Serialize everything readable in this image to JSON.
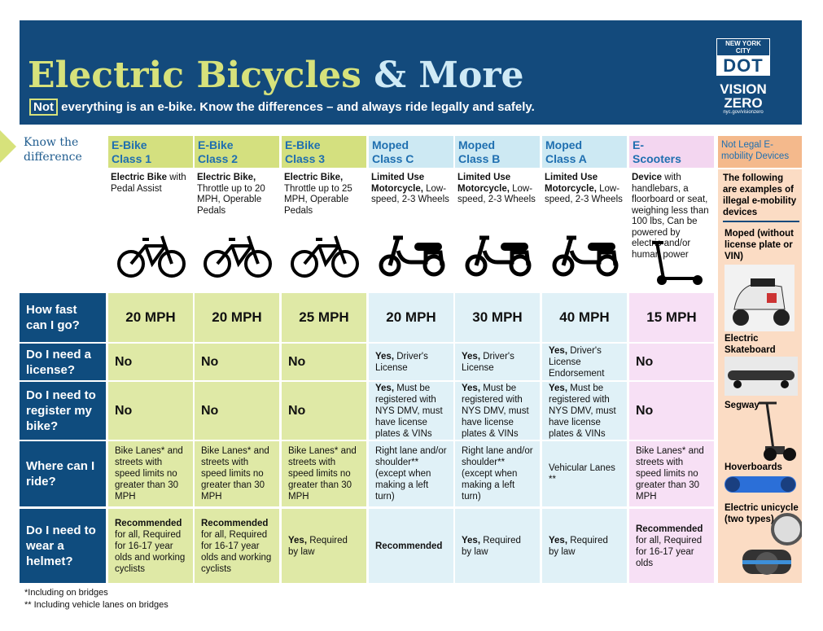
{
  "header": {
    "title_part1": "Electric Bicycles",
    "title_part2": "& More",
    "subtitle_not": "Not",
    "subtitle": "everything is an e-bike. Know the differences – and always ride legally and safely.",
    "logo_top": "NEW YORK CITY",
    "logo_dot": "DOT",
    "vision": "VISION",
    "zero": "ZERO",
    "url": "nyc.gov/visionzero"
  },
  "intro": "Know the difference",
  "columns": [
    {
      "title": "E-Bike Class 1",
      "desc": {
        "bold": "Electric Bike",
        "text": "with Pedal Assist"
      }
    },
    {
      "title": "E-Bike Class 2",
      "desc": {
        "bold": "Electric Bike,",
        "text": "Throttle up to 20 MPH, Operable Pedals"
      }
    },
    {
      "title": "E-Bike Class 3",
      "desc": {
        "bold": "Electric Bike,",
        "text": "Throttle up to 25 MPH, Operable Pedals"
      }
    },
    {
      "title": "Moped Class C",
      "desc": {
        "bold": "Limited Use Motorcycle,",
        "text": "Low-speed, 2-3 Wheels"
      }
    },
    {
      "title": "Moped Class B",
      "desc": {
        "bold": "Limited Use Motorcycle,",
        "text": "Low-speed, 2-3 Wheels"
      }
    },
    {
      "title": "Moped Class A",
      "desc": {
        "bold": "Limited Use Motorcycle,",
        "text": "Low-speed, 2-3 Wheels"
      }
    },
    {
      "title": "E-Scooters",
      "desc": {
        "bold": "Device",
        "text": "with handlebars, a floorboard or seat, weighing less than 100 lbs, Can be powered by electric and/or human power"
      }
    }
  ],
  "rows": [
    {
      "label": "How fast can I go?",
      "cells": [
        {
          "bold": "20 MPH"
        },
        {
          "bold": "20 MPH"
        },
        {
          "bold": "25 MPH"
        },
        {
          "bold": "20 MPH"
        },
        {
          "bold": "30 MPH"
        },
        {
          "bold": "40 MPH"
        },
        {
          "bold": "15 MPH"
        }
      ]
    },
    {
      "label": "Do I need a license?",
      "cells": [
        {
          "bold": "No"
        },
        {
          "bold": "No"
        },
        {
          "bold": "No"
        },
        {
          "bold": "Yes,",
          "text": "Driver's License"
        },
        {
          "bold": "Yes,",
          "text": "Driver's License"
        },
        {
          "bold": "Yes,",
          "text": "Driver's License Endorsement"
        },
        {
          "bold": "No"
        }
      ]
    },
    {
      "label": "Do I need to register my bike?",
      "cells": [
        {
          "bold": "No"
        },
        {
          "bold": "No"
        },
        {
          "bold": "No"
        },
        {
          "bold": "Yes,",
          "text": "Must be registered with NYS DMV, must have license plates & VINs"
        },
        {
          "bold": "Yes,",
          "text": "Must be registered with NYS DMV, must have license plates & VINs"
        },
        {
          "bold": "Yes,",
          "text": "Must be registered with NYS DMV, must have license plates & VINs"
        },
        {
          "bold": "No"
        }
      ]
    },
    {
      "label": "Where can I ride?",
      "cells": [
        {
          "text": "Bike Lanes* and streets with speed limits no greater than 30 MPH"
        },
        {
          "text": "Bike Lanes* and streets with speed limits no greater than 30 MPH"
        },
        {
          "text": "Bike Lanes* and streets with speed limits no greater than 30 MPH"
        },
        {
          "text": "Right lane and/or shoulder** (except when making a left turn)"
        },
        {
          "text": "Right lane and/or shoulder** (except when making a left turn)"
        },
        {
          "text": "Vehicular Lanes **"
        },
        {
          "text": "Bike Lanes* and streets with speed limits no greater than 30 MPH"
        }
      ]
    },
    {
      "label": "Do I need to wear a helmet?",
      "cells": [
        {
          "bold": "Recommended",
          "text": "for all, Required for 16-17 year olds and working cyclists"
        },
        {
          "bold": "Recommended",
          "text": "for all, Required for 16-17 year olds and working cyclists"
        },
        {
          "bold": "Yes,",
          "text": "Required by law"
        },
        {
          "bold": "Recommended"
        },
        {
          "bold": "Yes,",
          "text": "Required by law"
        },
        {
          "bold": "Yes,",
          "text": "Required by law"
        },
        {
          "bold": "Recommended",
          "text": "for all, Required for 16-17 year olds"
        }
      ]
    }
  ],
  "illegal": {
    "title": "Not Legal E-mobility Devices",
    "intro": "The following are examples of illegal e-mobility devices",
    "items": [
      "Moped (without license plate or VIN)",
      "Electric Skateboard",
      "Segway",
      "Hoverboards",
      "Electric unicycle (two types)"
    ]
  },
  "footnotes": [
    "*Including on bridges",
    "** Including vehicle lanes on bridges"
  ]
}
